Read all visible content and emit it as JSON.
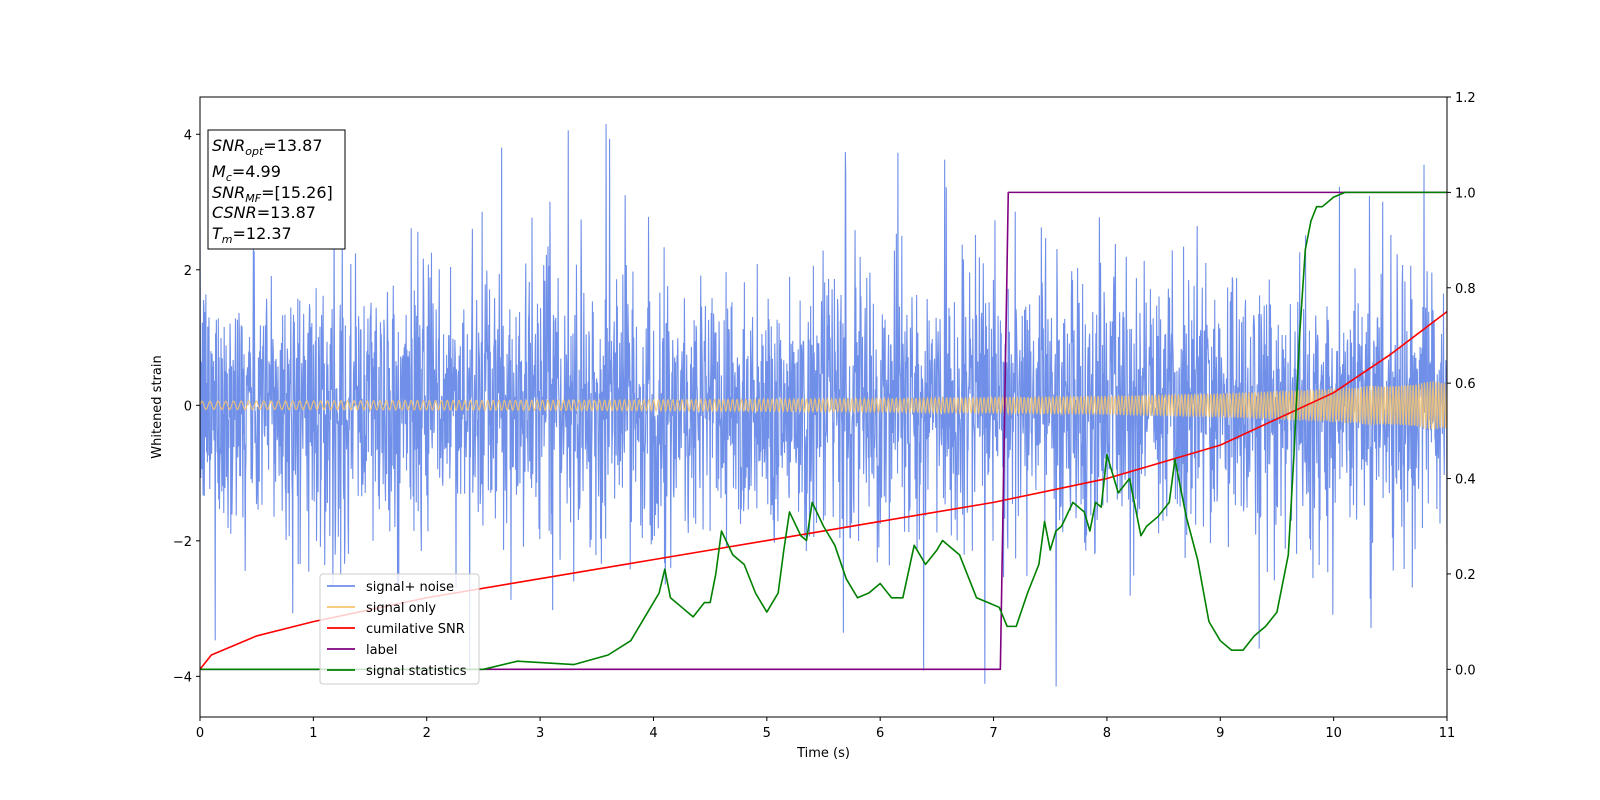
{
  "chart_data": {
    "type": "line",
    "xlabel": "Time (s)",
    "ylabel": "Whitened strain",
    "xlim": [
      0,
      11
    ],
    "ylim_left": [
      -4.6,
      4.55
    ],
    "ylim_right": [
      -0.1,
      1.2
    ],
    "x_ticks": [
      0,
      1,
      2,
      3,
      4,
      5,
      6,
      7,
      8,
      9,
      10,
      11
    ],
    "y_left_ticks": [
      -4,
      -2,
      0,
      2,
      4
    ],
    "y_right_ticks": [
      "0.0",
      "0.2",
      "0.4",
      "0.6",
      "0.8",
      "1.0",
      "1.2"
    ],
    "annotation": {
      "lines": [
        {
          "main": "SNR",
          "sub": "opt",
          "value": "=13.87"
        },
        {
          "main": "M",
          "sub": "c",
          "value": "=4.99"
        },
        {
          "main": "SNR",
          "sub": "MF",
          "value": "=[15.26]"
        },
        {
          "main": "CSNR",
          "sub": "",
          "value": "=13.87"
        },
        {
          "main": "T",
          "sub": "m",
          "value": "=12.37"
        }
      ]
    },
    "legend": {
      "placement": "lower-left",
      "entries": [
        {
          "label": "signal+ noise",
          "color": "#6f8fe8"
        },
        {
          "label": "signal only",
          "color": "#f7c56e"
        },
        {
          "label": "cumilative SNR",
          "color": "#ff0000"
        },
        {
          "label": "label",
          "color": "#800080"
        },
        {
          "label": "signal statistics",
          "color": "#008000"
        }
      ]
    },
    "series": [
      {
        "name": "signal+ noise",
        "axis": "left",
        "color": "#6f8fe8",
        "description_level": {
          "typical_amplitude": 1.6,
          "peaks_max": 4.15,
          "peaks_min": -4.15
        }
      },
      {
        "name": "signal only",
        "axis": "left",
        "color": "#f7c56e",
        "envelope": {
          "x": [
            0,
            2,
            4,
            6,
            8,
            9,
            10,
            11
          ],
          "amp": [
            0.06,
            0.07,
            0.08,
            0.1,
            0.14,
            0.18,
            0.25,
            0.37
          ]
        }
      },
      {
        "name": "cumilative SNR",
        "axis": "right",
        "color": "#ff0000",
        "x": [
          0,
          0.1,
          0.5,
          1,
          2,
          3,
          4,
          5,
          6,
          7,
          8,
          9,
          10,
          10.5,
          11
        ],
        "y": [
          0.0,
          0.03,
          0.07,
          0.1,
          0.15,
          0.19,
          0.23,
          0.27,
          0.31,
          0.35,
          0.4,
          0.47,
          0.58,
          0.66,
          0.75
        ]
      },
      {
        "name": "label",
        "axis": "right",
        "color": "#800080",
        "x": [
          0,
          7.06,
          7.13,
          11
        ],
        "y": [
          0,
          0,
          1,
          1
        ]
      },
      {
        "name": "signal statistics",
        "axis": "right",
        "color": "#008000",
        "x": [
          0,
          2.5,
          2.8,
          3.3,
          3.6,
          3.8,
          3.95,
          4.05,
          4.1,
          4.15,
          4.25,
          4.35,
          4.45,
          4.5,
          4.55,
          4.6,
          4.7,
          4.8,
          4.9,
          5.0,
          5.1,
          5.15,
          5.2,
          5.3,
          5.35,
          5.4,
          5.5,
          5.6,
          5.7,
          5.8,
          5.9,
          6.0,
          6.1,
          6.2,
          6.3,
          6.4,
          6.5,
          6.55,
          6.7,
          6.85,
          6.95,
          7.05,
          7.12,
          7.2,
          7.3,
          7.4,
          7.45,
          7.5,
          7.55,
          7.6,
          7.7,
          7.8,
          7.85,
          7.9,
          7.95,
          8.0,
          8.1,
          8.2,
          8.3,
          8.35,
          8.45,
          8.55,
          8.6,
          8.65,
          8.7,
          8.8,
          8.9,
          9.0,
          9.1,
          9.2,
          9.3,
          9.4,
          9.5,
          9.6,
          9.65,
          9.7,
          9.75,
          9.8,
          9.85,
          9.9,
          10.0,
          10.1,
          10.2,
          10.4,
          10.6,
          11
        ],
        "y": [
          0.0,
          0.0,
          0.017,
          0.01,
          0.03,
          0.06,
          0.12,
          0.16,
          0.21,
          0.15,
          0.13,
          0.11,
          0.14,
          0.14,
          0.2,
          0.29,
          0.24,
          0.22,
          0.16,
          0.12,
          0.16,
          0.25,
          0.33,
          0.28,
          0.27,
          0.35,
          0.3,
          0.26,
          0.19,
          0.15,
          0.16,
          0.18,
          0.15,
          0.15,
          0.26,
          0.22,
          0.25,
          0.27,
          0.24,
          0.15,
          0.14,
          0.13,
          0.09,
          0.09,
          0.16,
          0.22,
          0.31,
          0.25,
          0.29,
          0.3,
          0.35,
          0.33,
          0.29,
          0.35,
          0.34,
          0.45,
          0.37,
          0.4,
          0.28,
          0.3,
          0.32,
          0.35,
          0.44,
          0.38,
          0.32,
          0.23,
          0.1,
          0.06,
          0.04,
          0.04,
          0.07,
          0.09,
          0.12,
          0.24,
          0.45,
          0.7,
          0.88,
          0.94,
          0.97,
          0.97,
          0.99,
          1.0,
          1.0,
          1.0,
          1.0,
          1.0
        ]
      }
    ]
  }
}
